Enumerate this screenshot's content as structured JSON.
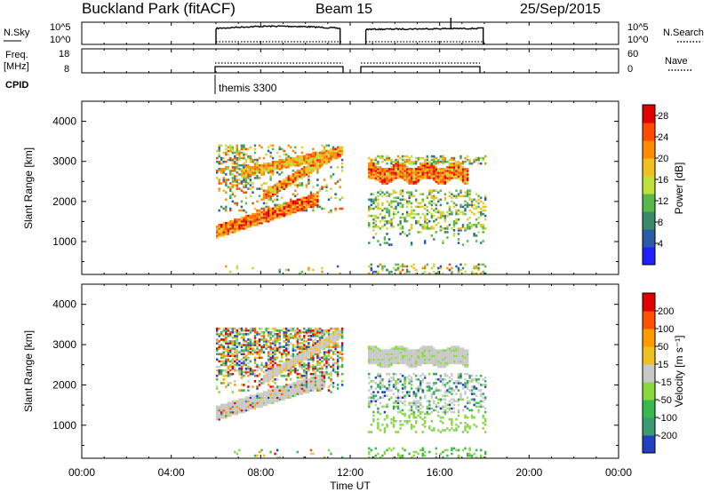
{
  "header": {
    "site": "Buckland Park (fitACF)",
    "beam": "Beam 15",
    "date": "25/Sep/2015"
  },
  "noise_panel": {
    "left_label": "N.Sky",
    "right_label": "N.Search",
    "ticks_left": [
      "10^5",
      "10^0"
    ],
    "ticks_right": [
      "10^5",
      "10^0"
    ]
  },
  "freq_panel": {
    "left_label_1": "Freq.",
    "left_label_2": "[MHz]",
    "right_label": "Nave",
    "ticks_left": [
      "18",
      "8"
    ],
    "ticks_right": [
      "60",
      "0"
    ]
  },
  "cpid": {
    "label": "CPID",
    "program": "themis 3300"
  },
  "x_axis": {
    "label": "Time UT",
    "ticks": [
      "00:00",
      "04:00",
      "08:00",
      "12:00",
      "16:00",
      "20:00",
      "00:00"
    ]
  },
  "chart_data": [
    {
      "type": "heatmap",
      "name": "power",
      "ylabel": "Slant Range [km]",
      "xlabel": "",
      "y_ticks": [
        "1000",
        "2000",
        "3000",
        "4000"
      ],
      "xlim_hours": [
        0,
        24
      ],
      "ylim_km": [
        180,
        4500
      ],
      "colorbar": {
        "label": "Power [dB]",
        "ticks": [
          "4",
          "8",
          "12",
          "16",
          "20",
          "24",
          "28"
        ],
        "range": [
          0,
          30
        ],
        "colors": [
          "#1f1fff",
          "#2a5aa8",
          "#3a8a6a",
          "#5ab84a",
          "#bfe03a",
          "#f0c020",
          "#ff8c00",
          "#ff4a00",
          "#e00000"
        ]
      },
      "data_windows_hours": [
        [
          6.0,
          11.6
        ],
        [
          12.7,
          18.0
        ]
      ]
    },
    {
      "type": "heatmap",
      "name": "velocity",
      "ylabel": "Slant Range [km]",
      "xlabel": "Time UT",
      "y_ticks": [
        "1000",
        "2000",
        "3000",
        "4000"
      ],
      "xlim_hours": [
        0,
        24
      ],
      "ylim_km": [
        180,
        4500
      ],
      "colorbar": {
        "label": "Velocity [m s⁻¹]",
        "ticks": [
          "200",
          "100",
          "50",
          "15",
          "-15",
          "-50",
          "-100",
          "-200"
        ],
        "colors": [
          "#2040c0",
          "#3a9a70",
          "#3ab850",
          "#8ad840",
          "#c8c8c8",
          "#f0c020",
          "#ff9a00",
          "#ff5000",
          "#e00000"
        ]
      },
      "data_windows_hours": [
        [
          6.0,
          11.6
        ],
        [
          12.7,
          18.0
        ]
      ]
    }
  ]
}
